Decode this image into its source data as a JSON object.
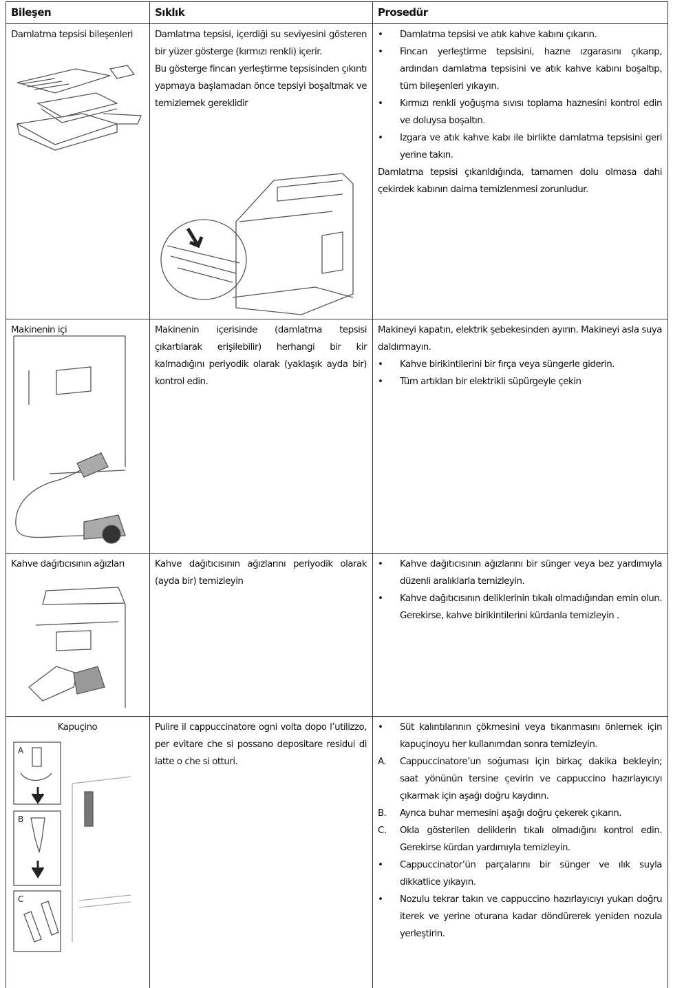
{
  "header": {
    "columns": [
      "Bileşen",
      "Sıklık",
      "Prosedür"
    ]
  },
  "rows": [
    {
      "component": "Damlatma tepsisi bileşenleri",
      "frequency": [
        "Damlatma tepsisi, içerdiği su seviyesini gösteren bir yüzer gösterge (kırmızı renkli) içerir.",
        "Bu gösterge fincan yerleştirme tepsisinden çıkıntı yapmaya başlamadan önce tepsiyi boşaltmak ve temizlemek gereklidir"
      ],
      "procedure": [
        {
          "marker": "•",
          "text": "Damlatma tepsisi ve atık kahve kabını çıkarın."
        },
        {
          "marker": "•",
          "text": "Fincan yerleştirme tepsisini, hazne ızgarasını çıkarıp, ardından damlatma tepsisini ve atık kahve kabını boşaltıp, tüm bileşenleri yıkayın."
        },
        {
          "marker": "•",
          "text": "Kırmızı renkli yoğuşma sıvısı toplama haznesini kontrol edin ve doluysa boşaltın."
        },
        {
          "marker": "•",
          "text": "Izgara ve atık kahve kabı ile birlikte damlatma tepsisini geri yerine takın."
        },
        {
          "text": "Damlatma tepsisi çıkarıldığında, tamamen dolu olmasa dahi çekirdek kabının daima temizlenmesi zorunludur."
        }
      ]
    },
    {
      "component": "Makinenin içi",
      "frequency": [
        "Makinenin içerisinde (damlatma tepsisi çıkartılarak erişilebilir) herhangi bir kir kalmadığını periyodik olarak (yaklaşık ayda bir) kontrol edin."
      ],
      "procedure": [
        {
          "text": "Makineyi kapatın, elektrik şebekesinden ayırın. Makineyi asla suya daldırmayın."
        },
        {
          "marker": "•",
          "text": "Kahve birikintilerini bir fırça veya süngerle giderin."
        },
        {
          "marker": "•",
          "text": "Tüm artıkları bir elektrikli süpürgeyle çekin"
        }
      ]
    },
    {
      "component": "Kahve dağıtıcısının ağızları",
      "frequency": [
        "Kahve dağıtıcısının ağızlarını periyodik olarak (ayda bir) temizleyin"
      ],
      "procedure": [
        {
          "marker": "•",
          "text": "Kahve dağıtıcısının ağızlarını bir sünger veya bez yardımıyla düzenli aralıklarla temizleyin."
        },
        {
          "marker": "•",
          "text": "Kahve dağıtıcısının deliklerinin tıkalı olmadığından emin olun. Gerekirse, kahve birikintilerini kürdanla temizleyin ."
        }
      ]
    },
    {
      "component": "Kapuçino",
      "figure_labels": [
        "A",
        "B",
        "C"
      ],
      "frequency": [
        "Pulire il cappuccinatore ogni volta dopo l’utilizzo, per evitare che si possano depositare residui di latte o che si otturi."
      ],
      "procedure": [
        {
          "marker": "•",
          "text": "Süt kalıntılarının çökmesini veya tıkanmasını önlemek için kapuçinoyu her kullanımdan sonra temizleyin."
        },
        {
          "marker": "A.",
          "text": "Cappuccinatore’un soğuması için birkaç dakika bekleyin; saat yönünün tersine çevirin ve cappuccino hazırlayıcıyı çıkarmak için aşağı doğru kaydırın."
        },
        {
          "marker": "B.",
          "text": "Ayrıca buhar memesini aşağı doğru çekerek çıkarın."
        },
        {
          "marker": "C.",
          "text": "Okla gösterilen deliklerin tıkalı olmadığını kontrol edin. Gerekirse kürdan yardımıyla temizleyin."
        },
        {
          "marker": "•",
          "text": "Cappuccinator’ün parçalarını bir sünger ve ılık suyla dikkatlice yıkayın."
        },
        {
          "marker": "•",
          "text": "Nozulu tekrar takın ve cappuccino hazırlayıcıyı yukarı doğru iterek ve yerine oturana kadar döndürerek yeniden nozula yerleştirin."
        }
      ]
    }
  ]
}
